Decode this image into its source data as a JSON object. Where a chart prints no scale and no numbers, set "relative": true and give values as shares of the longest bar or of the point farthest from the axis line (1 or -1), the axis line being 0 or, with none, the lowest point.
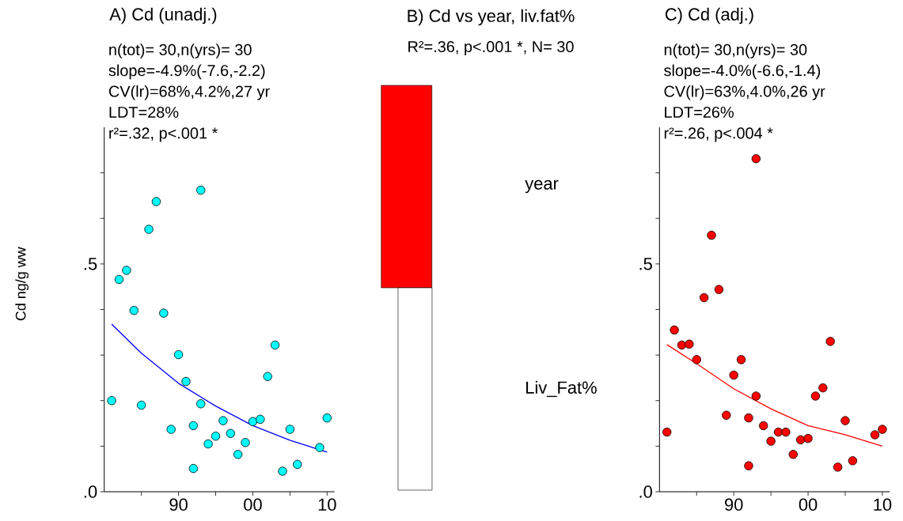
{
  "chart_data": [
    {
      "type": "scatter",
      "title": "A) Cd (unadj.)",
      "ylabel": "Cd ng/g ww",
      "annotations": [
        "n(tot)= 30,n(yrs)= 30",
        "slope=-4.9%(-7.6,-2.2)",
        "CV(lr)=68%,4.2%,27 yr",
        "LDT=28%",
        "r²=.32, p<.001 *"
      ],
      "xlim": [
        1980,
        2011
      ],
      "ylim": [
        0,
        0.8
      ],
      "xticks": [
        {
          "value": 1985,
          "label": null
        },
        {
          "value": 1990,
          "label": "90"
        },
        {
          "value": 1995,
          "label": null
        },
        {
          "value": 2000,
          "label": "00"
        },
        {
          "value": 2005,
          "label": null
        },
        {
          "value": 2010,
          "label": "10"
        }
      ],
      "yticks": [
        {
          "value": 0,
          "label": ".0"
        },
        {
          "value": 0.1,
          "label": null
        },
        {
          "value": 0.2,
          "label": null
        },
        {
          "value": 0.3,
          "label": null
        },
        {
          "value": 0.4,
          "label": null
        },
        {
          "value": 0.5,
          "label": ".5"
        },
        {
          "value": 0.6,
          "label": null
        },
        {
          "value": 0.7,
          "label": null
        }
      ],
      "series": [
        {
          "type": "scatter",
          "marker": "circle",
          "color": "#00ffff",
          "x": [
            1981,
            1982,
            1983,
            1984,
            1985,
            1986,
            1987,
            1988,
            1989,
            1990,
            1991,
            1992,
            1992,
            1993,
            1993,
            1994,
            1995,
            1996,
            1997,
            1998,
            1999,
            2000,
            2001,
            2002,
            2003,
            2004,
            2005,
            2006,
            2009,
            2010
          ],
          "values": [
            0.2,
            0.466,
            0.486,
            0.398,
            0.19,
            0.576,
            0.637,
            0.392,
            0.137,
            0.301,
            0.242,
            0.145,
            0.051,
            0.662,
            0.193,
            0.105,
            0.122,
            0.156,
            0.128,
            0.082,
            0.108,
            0.154,
            0.159,
            0.253,
            0.322,
            0.045,
            0.137,
            0.06,
            0.097,
            0.162
          ]
        },
        {
          "type": "line",
          "marker": "none",
          "color": "#0000ff",
          "x": [
            1981,
            1985,
            1990,
            1995,
            2000,
            2005,
            2010
          ],
          "values": [
            0.368,
            0.304,
            0.238,
            0.188,
            0.145,
            0.113,
            0.087
          ]
        }
      ]
    },
    {
      "type": "bar",
      "title": "B) Cd vs year, liv.fat%",
      "subtitle": "R²=.36, p<.001 *, N= 30",
      "categories": [
        null
      ],
      "stacked": true,
      "relative": true,
      "series": [
        {
          "name": "Liv_Fat%",
          "color": "#ffffff",
          "values": [
            0.5
          ]
        },
        {
          "name": "year",
          "color": "#ff0000",
          "values": [
            0.5
          ]
        }
      ]
    },
    {
      "type": "scatter",
      "title": "C) Cd (adj.)",
      "annotations": [
        "n(tot)= 30,n(yrs)= 30",
        "slope=-4.0%(-6.6,-1.4)",
        "CV(lr)=63%,4.0%,26 yr",
        "LDT=26%",
        "r²=.26, p<.004 *"
      ],
      "xlim": [
        1980,
        2011
      ],
      "ylim": [
        0,
        0.8
      ],
      "xticks": [
        {
          "value": 1985,
          "label": null
        },
        {
          "value": 1990,
          "label": "90"
        },
        {
          "value": 1995,
          "label": null
        },
        {
          "value": 2000,
          "label": "00"
        },
        {
          "value": 2005,
          "label": null
        },
        {
          "value": 2010,
          "label": "10"
        }
      ],
      "yticks": [
        {
          "value": 0,
          "label": ".0"
        },
        {
          "value": 0.1,
          "label": null
        },
        {
          "value": 0.2,
          "label": null
        },
        {
          "value": 0.3,
          "label": null
        },
        {
          "value": 0.4,
          "label": null
        },
        {
          "value": 0.5,
          "label": ".5"
        },
        {
          "value": 0.6,
          "label": null
        },
        {
          "value": 0.7,
          "label": null
        }
      ],
      "series": [
        {
          "type": "scatter",
          "marker": "circle",
          "color": "#ff0000",
          "x": [
            1981,
            1982,
            1983,
            1984,
            1985,
            1986,
            1987,
            1988,
            1989,
            1990,
            1991,
            1992,
            1992,
            1993,
            1993,
            1994,
            1995,
            1996,
            1997,
            1998,
            1999,
            2000,
            2001,
            2002,
            2003,
            2004,
            2005,
            2006,
            2009,
            2010
          ],
          "values": [
            0.131,
            0.355,
            0.322,
            0.324,
            0.29,
            0.426,
            0.563,
            0.444,
            0.168,
            0.256,
            0.29,
            0.162,
            0.057,
            0.731,
            0.21,
            0.145,
            0.111,
            0.131,
            0.131,
            0.082,
            0.114,
            0.117,
            0.21,
            0.228,
            0.33,
            0.054,
            0.156,
            0.068,
            0.125,
            0.137
          ]
        },
        {
          "type": "line",
          "marker": "none",
          "color": "#ff0000",
          "x": [
            1981,
            1985,
            1990,
            1995,
            2000,
            2005,
            2010
          ],
          "values": [
            0.323,
            0.281,
            0.226,
            0.182,
            0.145,
            0.125,
            0.1
          ]
        }
      ]
    }
  ]
}
